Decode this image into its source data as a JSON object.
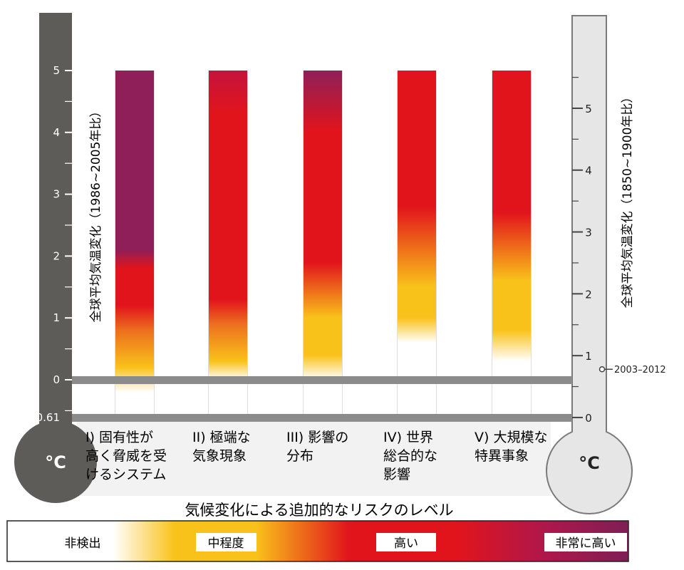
{
  "chart_data": {
    "type": "bar",
    "title": "気候変化による追加的なリスクのレベル",
    "categories": [
      {
        "lines": [
          "I) 固有性が",
          "高く脅威を受",
          "けるシステム"
        ]
      },
      {
        "lines": [
          "II) 極端な",
          "気象現象"
        ]
      },
      {
        "lines": [
          "III) 影響の",
          "分布"
        ]
      },
      {
        "lines": [
          "IV) 世界",
          "総合的な",
          "影響"
        ]
      },
      {
        "lines": [
          "V) 大規模な",
          "特異事象"
        ]
      }
    ],
    "y_left": {
      "label": "全球平均気温変化（1986~2005年比）",
      "unit": "°C",
      "ticks": [
        "5",
        "4",
        "3",
        "2",
        "1",
        "0",
        "-0.61"
      ],
      "tick_values": [
        5,
        4,
        3,
        2,
        1,
        0,
        -0.61
      ],
      "range": [
        -0.61,
        5
      ]
    },
    "y_right": {
      "label": "全球平均気温変化（1850~1900年比）",
      "unit": "°C",
      "ticks": [
        "5",
        "4",
        "3",
        "2",
        "1",
        "0"
      ],
      "tick_values": [
        5,
        4,
        3,
        2,
        1,
        0
      ],
      "offset_from_left": 0.61,
      "marker_label": "2003–2012",
      "marker_value": 0.78
    },
    "series": [
      {
        "stops": [
          [
            -0.2,
            "white"
          ],
          [
            0.2,
            "moderate"
          ],
          [
            0.8,
            "moderate-high"
          ],
          [
            1.2,
            "high"
          ],
          [
            1.8,
            "high"
          ],
          [
            2.1,
            "very-high"
          ],
          [
            5,
            "very-high"
          ]
        ]
      },
      {
        "stops": [
          [
            0.0,
            "white"
          ],
          [
            0.3,
            "moderate"
          ],
          [
            0.9,
            "moderate-high"
          ],
          [
            1.3,
            "high"
          ],
          [
            4.3,
            "high"
          ],
          [
            5,
            "high-very-high"
          ]
        ]
      },
      {
        "stops": [
          [
            0.0,
            "white"
          ],
          [
            0.4,
            "moderate"
          ],
          [
            1.0,
            "moderate"
          ],
          [
            1.9,
            "high"
          ],
          [
            4.0,
            "high"
          ],
          [
            5,
            "very-high"
          ]
        ]
      },
      {
        "stops": [
          [
            0.6,
            "white"
          ],
          [
            1.0,
            "moderate"
          ],
          [
            1.5,
            "moderate"
          ],
          [
            2.8,
            "high"
          ],
          [
            5,
            "high"
          ]
        ]
      },
      {
        "stops": [
          [
            0.3,
            "white"
          ],
          [
            0.8,
            "moderate"
          ],
          [
            1.6,
            "moderate"
          ],
          [
            2.7,
            "high"
          ],
          [
            5,
            "high"
          ]
        ]
      }
    ],
    "legend": [
      "非検出",
      "中程度",
      "高い",
      "非常に高い"
    ],
    "colors": {
      "white": "#ffffff",
      "moderate": "#f9c21a",
      "moderate-high": "#ec6f1e",
      "high": "#e2141b",
      "high-very-high": "#c5133d",
      "very-high": "#8f1f58",
      "left_thermo": "#5d5c58",
      "right_thermo": "#e6e6e6",
      "band": "#8b8b8b"
    }
  }
}
